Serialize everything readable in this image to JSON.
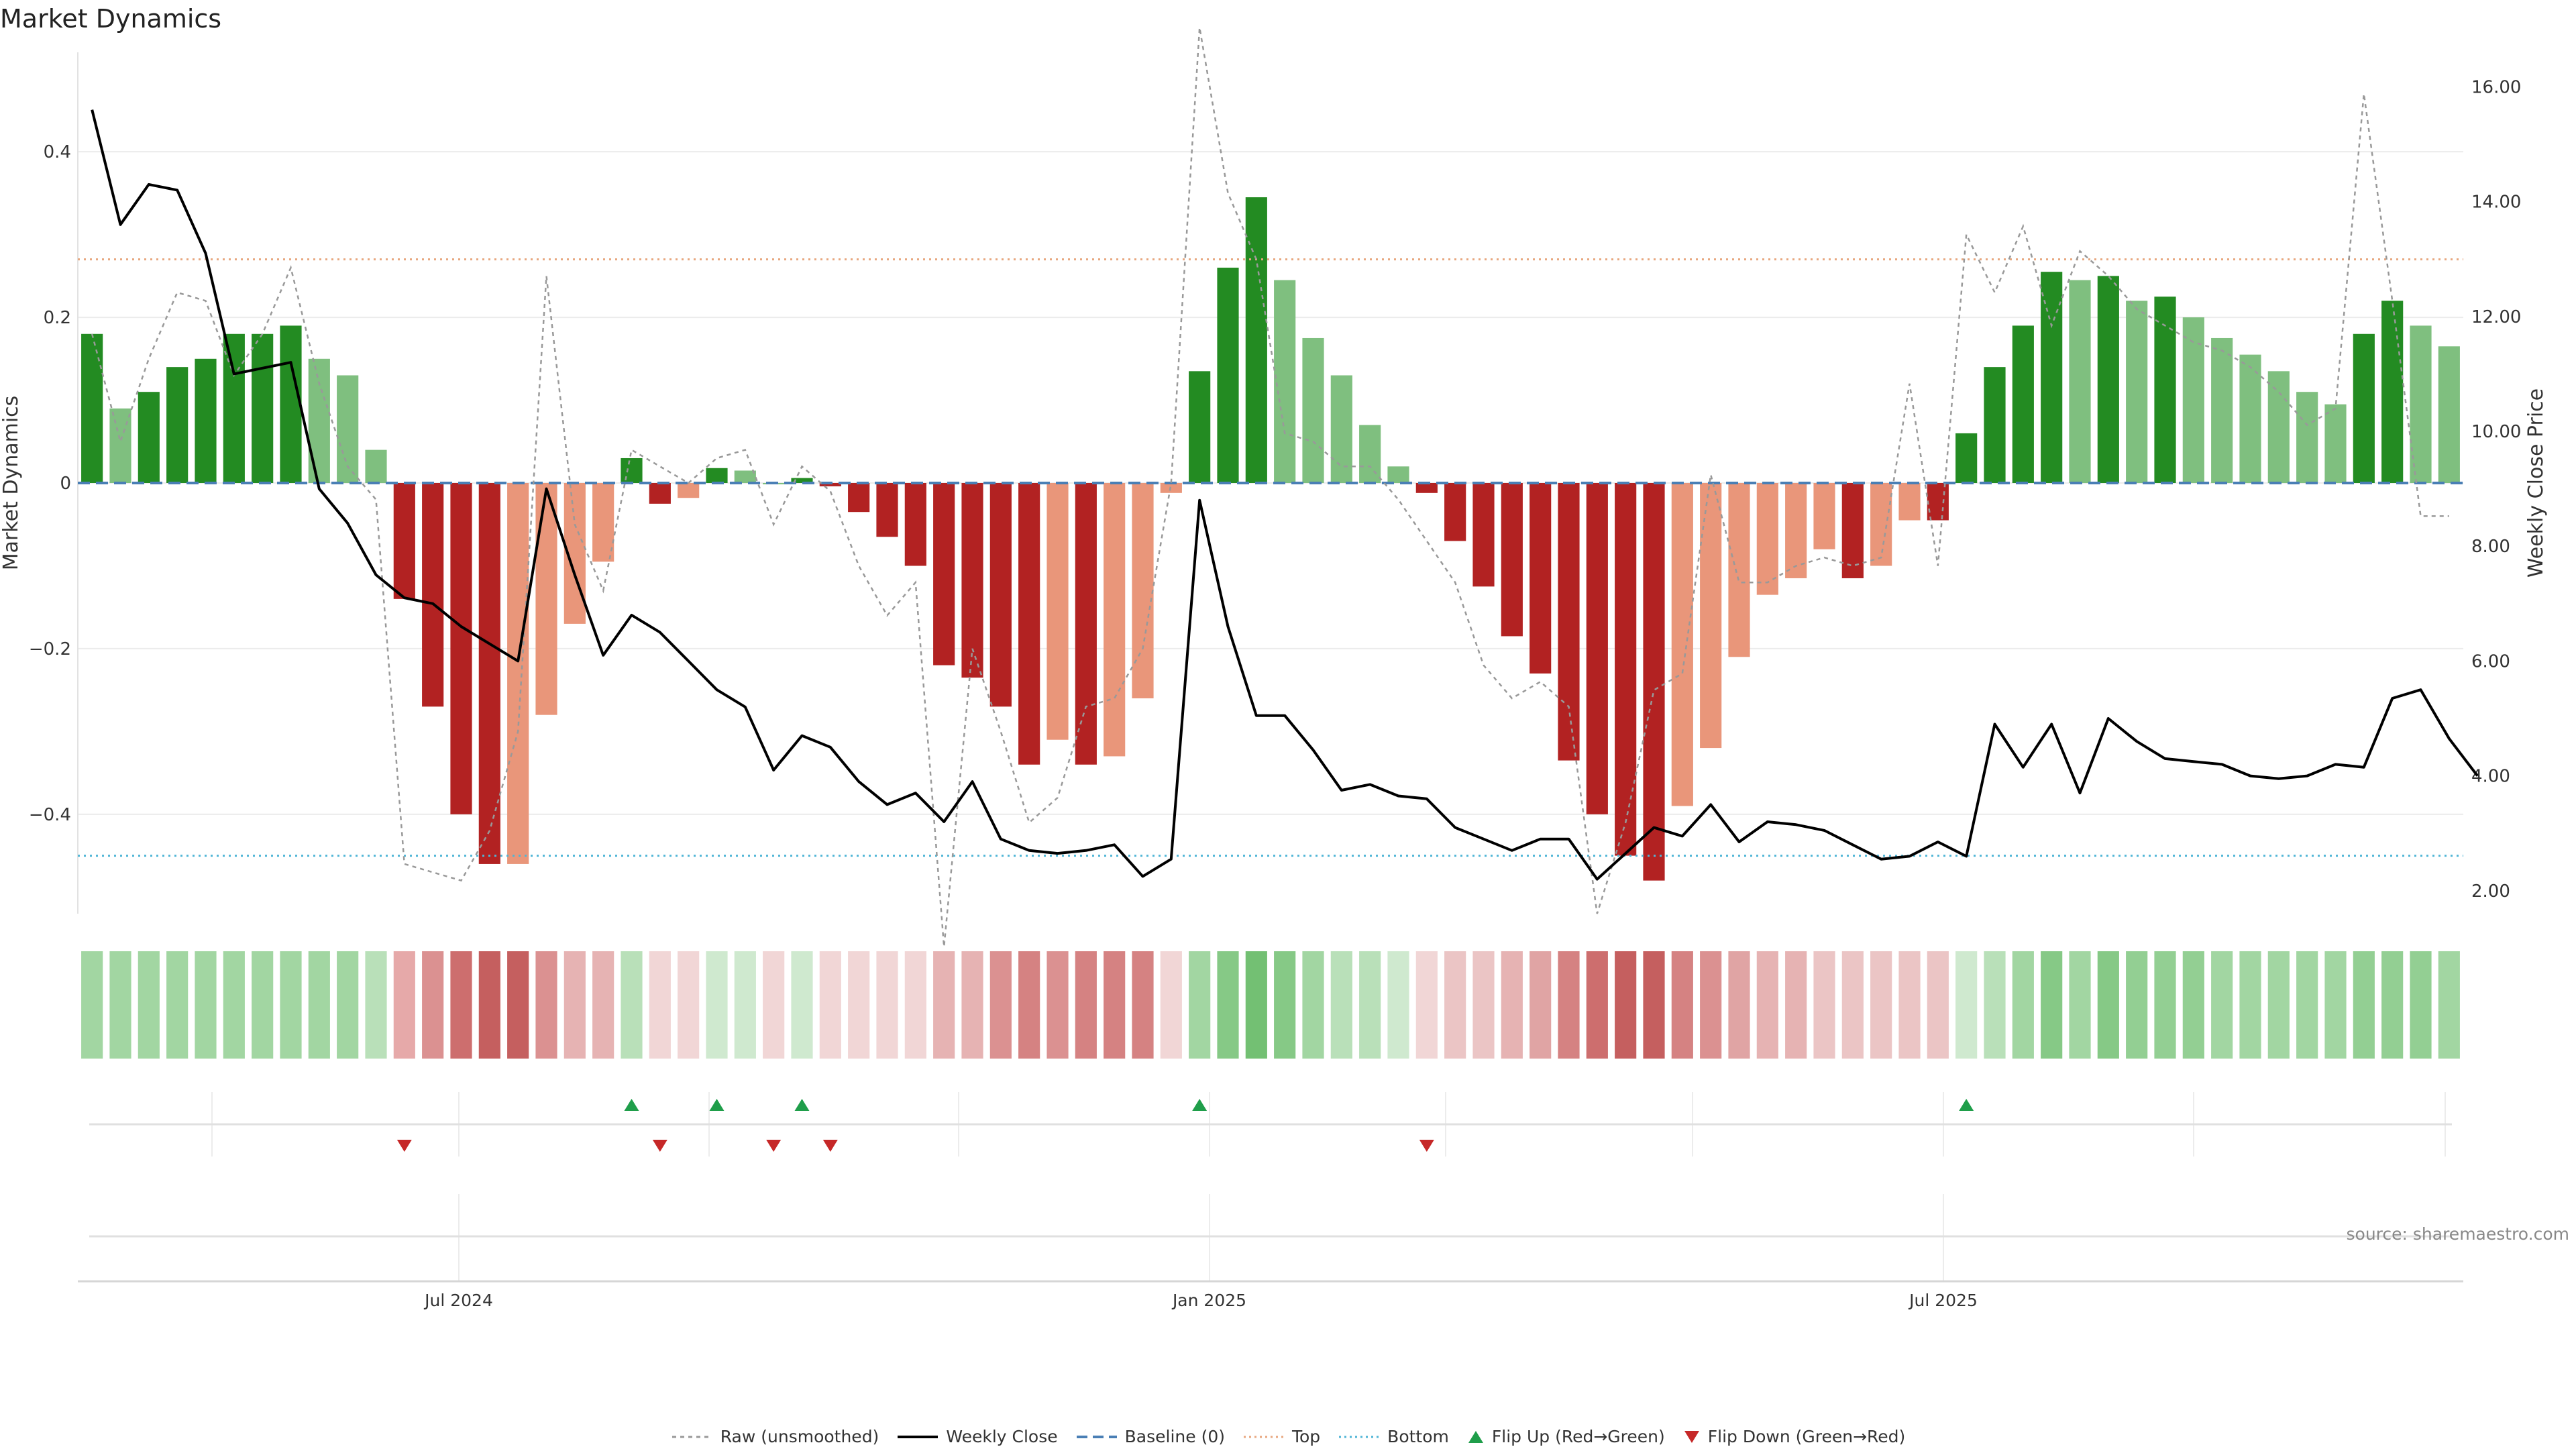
{
  "title": "Market Dynamics",
  "source_note": "source: sharemaestro.com",
  "chart_data": {
    "type": "bar",
    "title": "Market Dynamics",
    "ylabel_left": "Market Dynamics",
    "ylabel_right": "Weekly Close Price",
    "y_left_ticks": [
      "0.4",
      "0.2",
      "0",
      "−0.2",
      "−0.4"
    ],
    "y_right_ticks": [
      "16.00",
      "14.00",
      "12.00",
      "10.00",
      "8.00",
      "6.00",
      "4.00",
      "2.00"
    ],
    "ylim_left": [
      -0.52,
      0.52
    ],
    "ylim_right": [
      1.6,
      16.6
    ],
    "x_ticks": [
      "Jul 2024",
      "Jan 2025",
      "Jul 2025"
    ],
    "thresholds": {
      "baseline": 0,
      "top": 0.27,
      "bottom": -0.45
    },
    "bars": [
      0.18,
      0.09,
      0.11,
      0.14,
      0.15,
      0.18,
      0.18,
      0.19,
      0.15,
      0.13,
      0.04,
      -0.14,
      -0.27,
      -0.4,
      -0.46,
      -0.46,
      -0.28,
      -0.17,
      -0.095,
      0.03,
      -0.025,
      -0.018,
      0.018,
      0.015,
      0.0,
      0.006,
      -0.004,
      -0.035,
      -0.065,
      -0.1,
      -0.22,
      -0.235,
      -0.27,
      -0.34,
      -0.31,
      -0.34,
      -0.33,
      -0.26,
      -0.012,
      0.135,
      0.26,
      0.345,
      0.245,
      0.175,
      0.13,
      0.07,
      0.02,
      -0.012,
      -0.07,
      -0.125,
      -0.185,
      -0.23,
      -0.335,
      -0.4,
      -0.45,
      -0.48,
      -0.39,
      -0.32,
      -0.21,
      -0.135,
      -0.115,
      -0.08,
      -0.115,
      -0.1,
      -0.045,
      -0.045,
      0.06,
      0.14,
      0.19,
      0.255,
      0.245,
      0.25,
      0.22,
      0.225,
      0.2,
      0.175,
      0.155,
      0.135,
      0.11,
      0.095,
      0.18,
      0.22,
      0.19,
      0.165
    ],
    "bar_colors": [
      "#238b22",
      "#7fbf7f",
      "#238b22",
      "#238b22",
      "#238b22",
      "#238b22",
      "#238b22",
      "#238b22",
      "#7fbf7f",
      "#7fbf7f",
      "#7fbf7f",
      "#b22222",
      "#b22222",
      "#b22222",
      "#b22222",
      "#e9967a",
      "#e9967a",
      "#e9967a",
      "#e9967a",
      "#238b22",
      "#b22222",
      "#e9967a",
      "#238b22",
      "#7fbf7f",
      "#7fbf7f",
      "#238b22",
      "#b22222",
      "#b22222",
      "#b22222",
      "#b22222",
      "#b22222",
      "#b22222",
      "#b22222",
      "#b22222",
      "#e9967a",
      "#b22222",
      "#e9967a",
      "#e9967a",
      "#e9967a",
      "#238b22",
      "#238b22",
      "#238b22",
      "#7fbf7f",
      "#7fbf7f",
      "#7fbf7f",
      "#7fbf7f",
      "#7fbf7f",
      "#b22222",
      "#b22222",
      "#b22222",
      "#b22222",
      "#b22222",
      "#b22222",
      "#b22222",
      "#b22222",
      "#b22222",
      "#e9967a",
      "#e9967a",
      "#e9967a",
      "#e9967a",
      "#e9967a",
      "#e9967a",
      "#b22222",
      "#e9967a",
      "#e9967a",
      "#b22222",
      "#238b22",
      "#238b22",
      "#238b22",
      "#238b22",
      "#7fbf7f",
      "#238b22",
      "#7fbf7f",
      "#238b22",
      "#7fbf7f",
      "#7fbf7f",
      "#7fbf7f",
      "#7fbf7f",
      "#7fbf7f",
      "#7fbf7f",
      "#238b22",
      "#238b22",
      "#7fbf7f",
      "#7fbf7f"
    ],
    "raw": [
      0.18,
      0.05,
      0.15,
      0.23,
      0.22,
      0.13,
      0.18,
      0.26,
      0.12,
      0.02,
      -0.02,
      -0.46,
      -0.47,
      -0.48,
      -0.42,
      -0.3,
      0.25,
      -0.05,
      -0.13,
      0.04,
      0.02,
      0.0,
      0.03,
      0.04,
      -0.05,
      0.02,
      -0.01,
      -0.1,
      -0.16,
      -0.12,
      -0.56,
      -0.2,
      -0.3,
      -0.41,
      -0.38,
      -0.27,
      -0.26,
      -0.2,
      0.0,
      0.55,
      0.35,
      0.27,
      0.06,
      0.05,
      0.02,
      0.02,
      -0.02,
      -0.07,
      -0.12,
      -0.22,
      -0.26,
      -0.24,
      -0.27,
      -0.52,
      -0.41,
      -0.25,
      -0.23,
      0.01,
      -0.12,
      -0.12,
      -0.1,
      -0.09,
      -0.1,
      -0.09,
      0.12,
      -0.1,
      0.3,
      0.23,
      0.31,
      0.19,
      0.28,
      0.25,
      0.21,
      0.19,
      0.17,
      0.16,
      0.14,
      0.11,
      0.07,
      0.09,
      0.47,
      0.22,
      -0.04,
      -0.04
    ],
    "weekly_close": [
      15.6,
      13.6,
      14.3,
      14.2,
      13.1,
      11.0,
      11.1,
      11.2,
      9.0,
      8.4,
      7.5,
      7.1,
      7.0,
      6.6,
      6.3,
      6.0,
      9.0,
      7.5,
      6.1,
      6.8,
      6.5,
      6.0,
      5.5,
      5.2,
      4.1,
      4.7,
      4.5,
      3.9,
      3.5,
      3.7,
      3.2,
      3.9,
      2.9,
      2.7,
      2.65,
      2.7,
      2.8,
      2.25,
      2.55,
      8.8,
      6.6,
      5.05,
      5.05,
      4.45,
      3.75,
      3.85,
      3.65,
      3.6,
      3.1,
      2.9,
      2.7,
      2.9,
      2.9,
      2.2,
      2.65,
      3.1,
      2.95,
      3.5,
      2.85,
      3.2,
      3.15,
      3.05,
      2.8,
      2.55,
      2.6,
      2.85,
      2.6,
      4.9,
      4.15,
      4.9,
      3.7,
      5.0,
      4.6,
      4.3,
      4.25,
      4.2,
      4.0,
      3.95,
      4.0,
      4.2,
      4.15,
      5.35,
      5.5,
      4.65,
      4.0
    ],
    "heat_strip": [
      "#a2d6a2",
      "#a2d6a2",
      "#a2d6a2",
      "#a2d6a2",
      "#a2d6a2",
      "#a2d6a2",
      "#a2d6a2",
      "#a2d6a2",
      "#a2d6a2",
      "#a2d6a2",
      "#b9e0b9",
      "#e6a9a9",
      "#db9191",
      "#cd6e6e",
      "#c55f5f",
      "#c55f5f",
      "#db9191",
      "#e6b3b3",
      "#e6b3b3",
      "#b9e0b9",
      "#f1d6d6",
      "#f1d6d6",
      "#cfe9cf",
      "#cfe9cf",
      "#f1d6d6",
      "#cfe9cf",
      "#f1d6d6",
      "#f1d6d6",
      "#f1d6d6",
      "#f1d6d6",
      "#e6b3b3",
      "#e6b3b3",
      "#db9191",
      "#d58282",
      "#db9191",
      "#d58282",
      "#d58282",
      "#d58282",
      "#f1d6d6",
      "#a2d6a2",
      "#86c986",
      "#73c073",
      "#86c986",
      "#a2d6a2",
      "#b9e0b9",
      "#b9e0b9",
      "#cfe9cf",
      "#f1d6d6",
      "#ebc5c5",
      "#ebc5c5",
      "#e6b3b3",
      "#e0a4a4",
      "#d58282",
      "#cd6e6e",
      "#c55f5f",
      "#c55f5f",
      "#d58282",
      "#db9191",
      "#e0a4a4",
      "#e6b3b3",
      "#e6b3b3",
      "#ebc5c5",
      "#ebc5c5",
      "#ebc5c5",
      "#ebc5c5",
      "#ebc5c5",
      "#cfe9cf",
      "#b9e0b9",
      "#a2d6a2",
      "#86c986",
      "#a2d6a2",
      "#86c986",
      "#93cf93",
      "#93cf93",
      "#93cf93",
      "#a2d6a2",
      "#a2d6a2",
      "#a2d6a2",
      "#a2d6a2",
      "#a2d6a2",
      "#93cf93",
      "#93cf93",
      "#93cf93",
      "#a2d6a2"
    ],
    "flip_up_indices": [
      19,
      22,
      25,
      39,
      66
    ],
    "flip_down_indices": [
      11,
      20,
      24,
      26,
      47
    ],
    "colors": {
      "raw": "#999999",
      "close": "#000000",
      "baseline": "#4a7fb5",
      "top": "#e8a77f",
      "bottom": "#4fb5d6",
      "flip_up": "#1f9e4a",
      "flip_down": "#c62828"
    }
  },
  "legend": {
    "raw": "Raw (unsmoothed)",
    "close": "Weekly Close",
    "baseline": "Baseline (0)",
    "top": "Top",
    "bottom": "Bottom",
    "flip_up": "Flip Up (Red→Green)",
    "flip_down": "Flip Down (Green→Red)"
  }
}
